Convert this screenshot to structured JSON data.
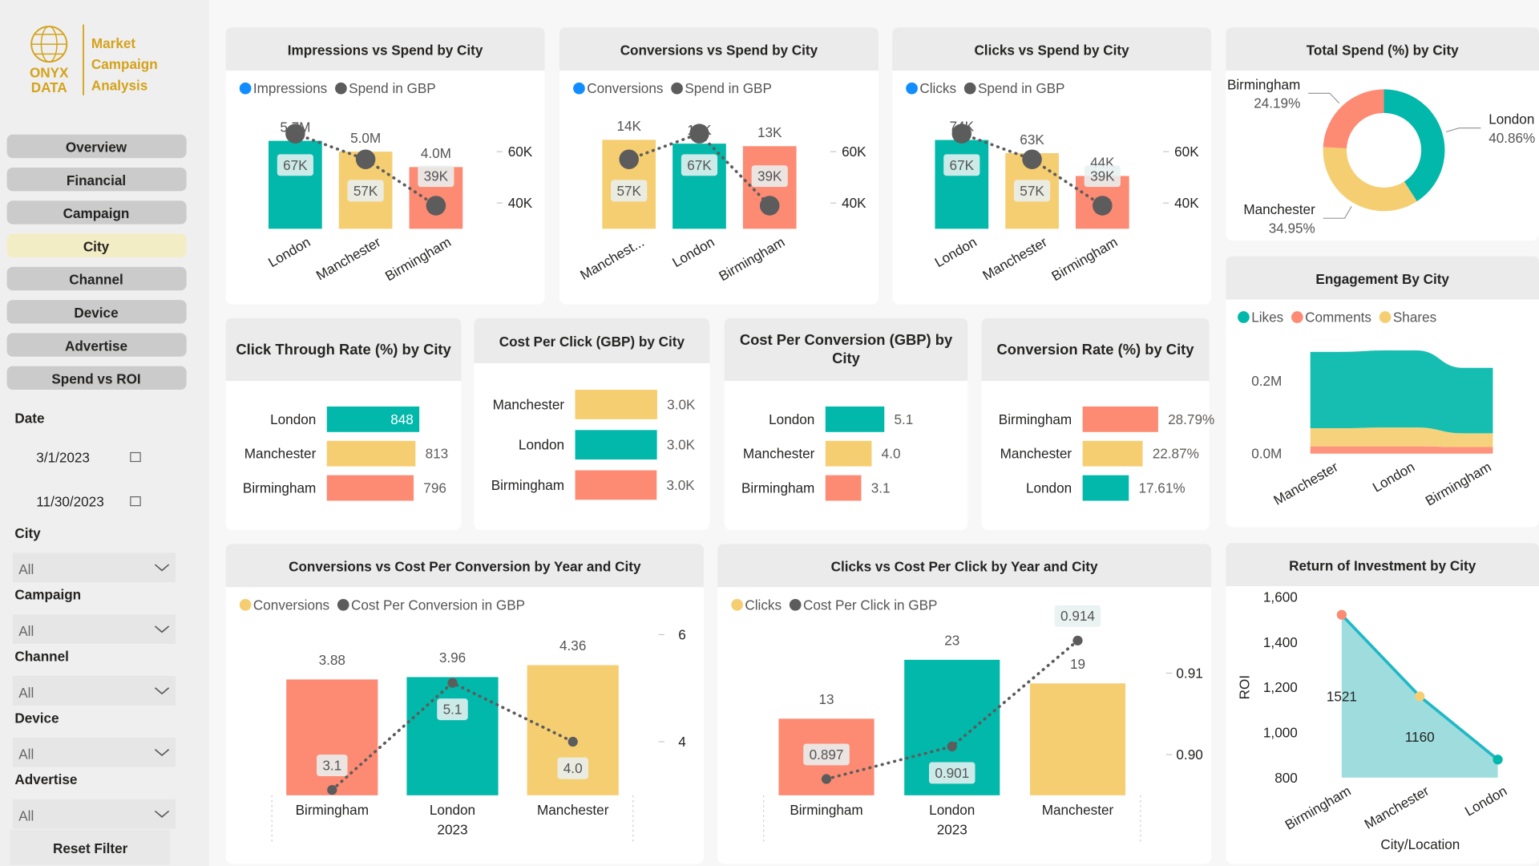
{
  "sidebar": {
    "logo": {
      "mark": [
        "ONYX",
        "DATA"
      ],
      "name": [
        "Market",
        "Campaign",
        "Analysis"
      ]
    },
    "nav": [
      {
        "label": "Overview"
      },
      {
        "label": "Financial"
      },
      {
        "label": "Campaign"
      },
      {
        "label": "City",
        "active": true
      },
      {
        "label": "Channel"
      },
      {
        "label": "Device"
      },
      {
        "label": "Advertise"
      },
      {
        "label": "Spend vs ROI"
      }
    ],
    "filters": [
      {
        "label": "Date",
        "values": [
          "3/1/2023",
          "11/30/2023"
        ]
      },
      {
        "label": "City",
        "value": "All"
      },
      {
        "label": "Campaign",
        "value": "All"
      },
      {
        "label": "Channel",
        "value": "All"
      },
      {
        "label": "Device",
        "value": "All"
      },
      {
        "label": "Advertise",
        "value": "All"
      }
    ],
    "reset": "Reset Filter"
  },
  "chart_data": [
    {
      "type": "combo",
      "title": "Impressions vs Spend by City",
      "categories": [
        "London",
        "Manchester",
        "Birmingham"
      ],
      "colors": [
        "#01B8AA",
        "#F6CE72",
        "#FD8A73"
      ],
      "series": [
        {
          "name": "Impressions",
          "color": "#118DFF",
          "values": [
            5700000,
            5000000,
            4000000
          ],
          "value_labels": [
            "5.7M",
            "5.0M",
            "4.0M"
          ]
        },
        {
          "name": "Spend in GBP",
          "color": "#5C5C5C",
          "axis": "y2",
          "values": [
            67000,
            57000,
            39000
          ],
          "value_labels": [
            "67K",
            "57K",
            "39K"
          ]
        }
      ],
      "ylim": [
        0,
        7000000
      ],
      "y2lim": [
        30000,
        72000
      ],
      "y2ticks": [
        {
          "value": 40000,
          "label": "40K"
        },
        {
          "value": 60000,
          "label": "60K"
        }
      ]
    },
    {
      "type": "combo",
      "title": "Conversions vs Spend by City",
      "categories": [
        "Manchest...",
        "London",
        "Birmingham"
      ],
      "colors": [
        "#F6CE72",
        "#01B8AA",
        "#FD8A73"
      ],
      "series": [
        {
          "name": "Conversions",
          "color": "#118DFF",
          "values": [
            14000,
            13400,
            13000
          ],
          "value_labels": [
            "14K",
            "13K",
            "13K"
          ]
        },
        {
          "name": "Spend in GBP",
          "color": "#5C5C5C",
          "axis": "y2",
          "values": [
            57000,
            67000,
            39000
          ],
          "value_labels": [
            "57K",
            "67K",
            "39K"
          ]
        }
      ],
      "ylim": [
        0,
        17000
      ],
      "y2lim": [
        30000,
        72000
      ],
      "y2ticks": [
        {
          "value": 40000,
          "label": "40K"
        },
        {
          "value": 60000,
          "label": "60K"
        }
      ]
    },
    {
      "type": "combo",
      "title": "Clicks vs Spend by City",
      "categories": [
        "London",
        "Manchester",
        "Birmingham"
      ],
      "colors": [
        "#01B8AA",
        "#F6CE72",
        "#FD8A73"
      ],
      "series": [
        {
          "name": "Clicks",
          "color": "#118DFF",
          "values": [
            74000,
            63000,
            44000
          ],
          "value_labels": [
            "74K",
            "63K",
            "44K"
          ]
        },
        {
          "name": "Spend in GBP",
          "color": "#5C5C5C",
          "axis": "y2",
          "values": [
            67000,
            57000,
            39000
          ],
          "value_labels": [
            "67K",
            "57K",
            "39K"
          ]
        }
      ],
      "ylim": [
        0,
        90000
      ],
      "y2lim": [
        30000,
        72000
      ],
      "y2ticks": [
        {
          "value": 40000,
          "label": "40K"
        },
        {
          "value": 60000,
          "label": "60K"
        }
      ]
    },
    {
      "type": "donut",
      "title": "Total Spend (%) by City",
      "categories": [
        "London",
        "Manchester",
        "Birmingham"
      ],
      "values": [
        40.86,
        34.95,
        24.19
      ],
      "value_labels": [
        "40.86%",
        "34.95%",
        "24.19%"
      ],
      "colors": [
        "#01B8AA",
        "#F6CE72",
        "#FD8A73"
      ]
    },
    {
      "type": "hbar",
      "title": "Click Through Rate (%) by City",
      "categories": [
        "London",
        "Manchester",
        "Birmingham"
      ],
      "values": [
        848,
        813,
        796
      ],
      "colors": [
        "#01B8AA",
        "#F6CE72",
        "#FD8A73"
      ],
      "xlim": [
        0,
        900
      ]
    },
    {
      "type": "hbar",
      "title": "Cost Per Click (GBP) by City",
      "categories": [
        "Manchester",
        "London",
        "Birmingham"
      ],
      "values": [
        3010,
        3000,
        2990
      ],
      "value_labels": [
        "3.0K",
        "3.0K",
        "3.0K"
      ],
      "colors": [
        "#F6CE72",
        "#01B8AA",
        "#FD8A73"
      ],
      "xlim": [
        0,
        3600
      ]
    },
    {
      "type": "hbar",
      "title": "Cost Per Conversion (GBP) by City",
      "categories": [
        "London",
        "Manchester",
        "Birmingham"
      ],
      "values": [
        5.1,
        4.0,
        3.1
      ],
      "value_labels": [
        "5.1",
        "4.0",
        "3.1"
      ],
      "colors": [
        "#01B8AA",
        "#F6CE72",
        "#FD8A73"
      ],
      "xlim": [
        0,
        8.5
      ]
    },
    {
      "type": "hbar",
      "title": "Conversion Rate (%) by City",
      "categories": [
        "Birmingham",
        "Manchester",
        "London"
      ],
      "values": [
        28.79,
        22.87,
        17.61
      ],
      "value_labels": [
        "28.79%",
        "22.87%",
        "17.61%"
      ],
      "colors": [
        "#FD8A73",
        "#F6CE72",
        "#01B8AA"
      ],
      "xlim": [
        0,
        37.4
      ]
    },
    {
      "type": "ribbon",
      "title": "Engagement By City",
      "categories": [
        "Manchester",
        "London",
        "Birmingham"
      ],
      "series": [
        {
          "name": "Likes",
          "color": "#01B8AA",
          "values": [
            210000,
            212000,
            180000
          ]
        },
        {
          "name": "Comments",
          "color": "#FD8A73",
          "values": [
            20000,
            20000,
            18000
          ]
        },
        {
          "name": "Shares",
          "color": "#F6CE72",
          "values": [
            50000,
            52000,
            38000
          ]
        }
      ],
      "ylim": [
        0,
        300000
      ],
      "yticks": [
        {
          "value": 0,
          "label": "0.0M"
        },
        {
          "value": 200000,
          "label": "0.2M"
        }
      ]
    },
    {
      "type": "combo",
      "title": "Conversions vs Cost Per Conversion by Year and City",
      "categories": [
        "Birmingham",
        "London",
        "Manchester"
      ],
      "x_group": "2023",
      "colors": [
        "#FD8A73",
        "#01B8AA",
        "#F6CE72"
      ],
      "series": [
        {
          "name": "Conversions",
          "color": "#F6CE72",
          "values": [
            3.88,
            3.96,
            4.36
          ]
        },
        {
          "name": "Cost Per Conversion in GBP",
          "color": "#5C5C5C",
          "axis": "y2",
          "values": [
            3.1,
            5.1,
            4.0
          ],
          "value_labels": [
            "3.1",
            "5.1",
            "4.0"
          ]
        }
      ],
      "ylim": [
        0,
        5.92
      ],
      "y2lim": [
        3,
        6.3
      ],
      "y2ticks": [
        4,
        6
      ]
    },
    {
      "type": "combo",
      "title": "Clicks vs Cost Per Click by Year and City",
      "categories": [
        "Birmingham",
        "London",
        "Manchester"
      ],
      "x_group": "2023",
      "colors": [
        "#FD8A73",
        "#01B8AA",
        "#F6CE72"
      ],
      "series": [
        {
          "name": "Clicks",
          "color": "#F6CE72",
          "values": [
            13,
            23,
            19
          ]
        },
        {
          "name": "Cost Per Click in GBP",
          "color": "#5C5C5C",
          "axis": "y2",
          "values": [
            0.897,
            0.901,
            0.914
          ]
        }
      ],
      "ylim": [
        0,
        30
      ],
      "y2lim": [
        0.895,
        0.9167
      ],
      "y2ticks": [
        {
          "value": 0.9,
          "label": "0.90"
        },
        0.91
      ]
    },
    {
      "type": "area",
      "title": "Return of Investment by City",
      "categories": [
        "Birmingham",
        "Manchester",
        "London"
      ],
      "values": [
        1521,
        1160,
        880
      ],
      "value_labels": [
        "1521",
        "1160",
        null
      ],
      "colors": [
        "#FD8A73",
        "#F6CE72",
        "#01B8AA"
      ],
      "color": "#1FB8C6",
      "ylim": [
        800,
        1650
      ],
      "yticks": [
        800,
        {
          "value": 1000,
          "label": "1,000"
        },
        {
          "value": 1200,
          "label": "1,200"
        },
        {
          "value": 1400,
          "label": "1,400"
        },
        {
          "value": 1600,
          "label": "1,600"
        }
      ],
      "ylabel": "ROI",
      "xlabel": "City/Location"
    }
  ]
}
